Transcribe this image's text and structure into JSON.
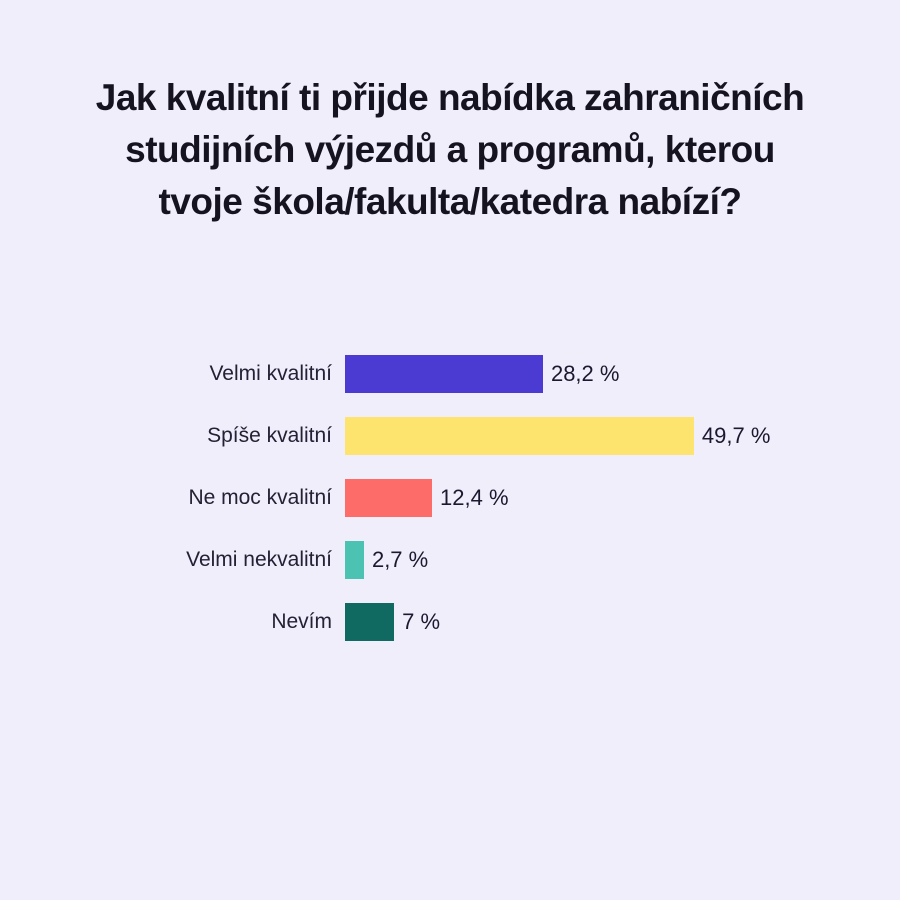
{
  "page": {
    "background_color": "#F0EEFB"
  },
  "title": {
    "lines": [
      "Jak kvalitní ti přijde nabídka zahraničních",
      "studijních výjezdů a programů, kterou",
      "tvoje škola/fakulta/katedra nabízí?"
    ],
    "color": "#15131F"
  },
  "chart_data": {
    "type": "bar",
    "orientation": "horizontal",
    "title": "Jak kvalitní ti přijde nabídka zahraničních studijních výjezdů a programů, kterou tvoje škola/fakulta/katedra nabízí?",
    "categories": [
      "Velmi kvalitní",
      "Spíše kvalitní",
      "Ne moc kvalitní",
      "Velmi nekvalitní",
      "Nevím"
    ],
    "values": [
      28.2,
      49.7,
      12.4,
      2.7,
      7
    ],
    "value_labels": [
      "28,2 %",
      "49,7 %",
      "12,4 %",
      "2,7 %",
      "7 %"
    ],
    "bar_colors": [
      "#4C3BD2",
      "#FDE46E",
      "#FD6C69",
      "#4CC2B2",
      "#116A62"
    ],
    "xlabel": "",
    "ylabel": "",
    "xlim": [
      0,
      50
    ],
    "grid": false,
    "legend": false,
    "value_labels_position": "outside-end"
  }
}
